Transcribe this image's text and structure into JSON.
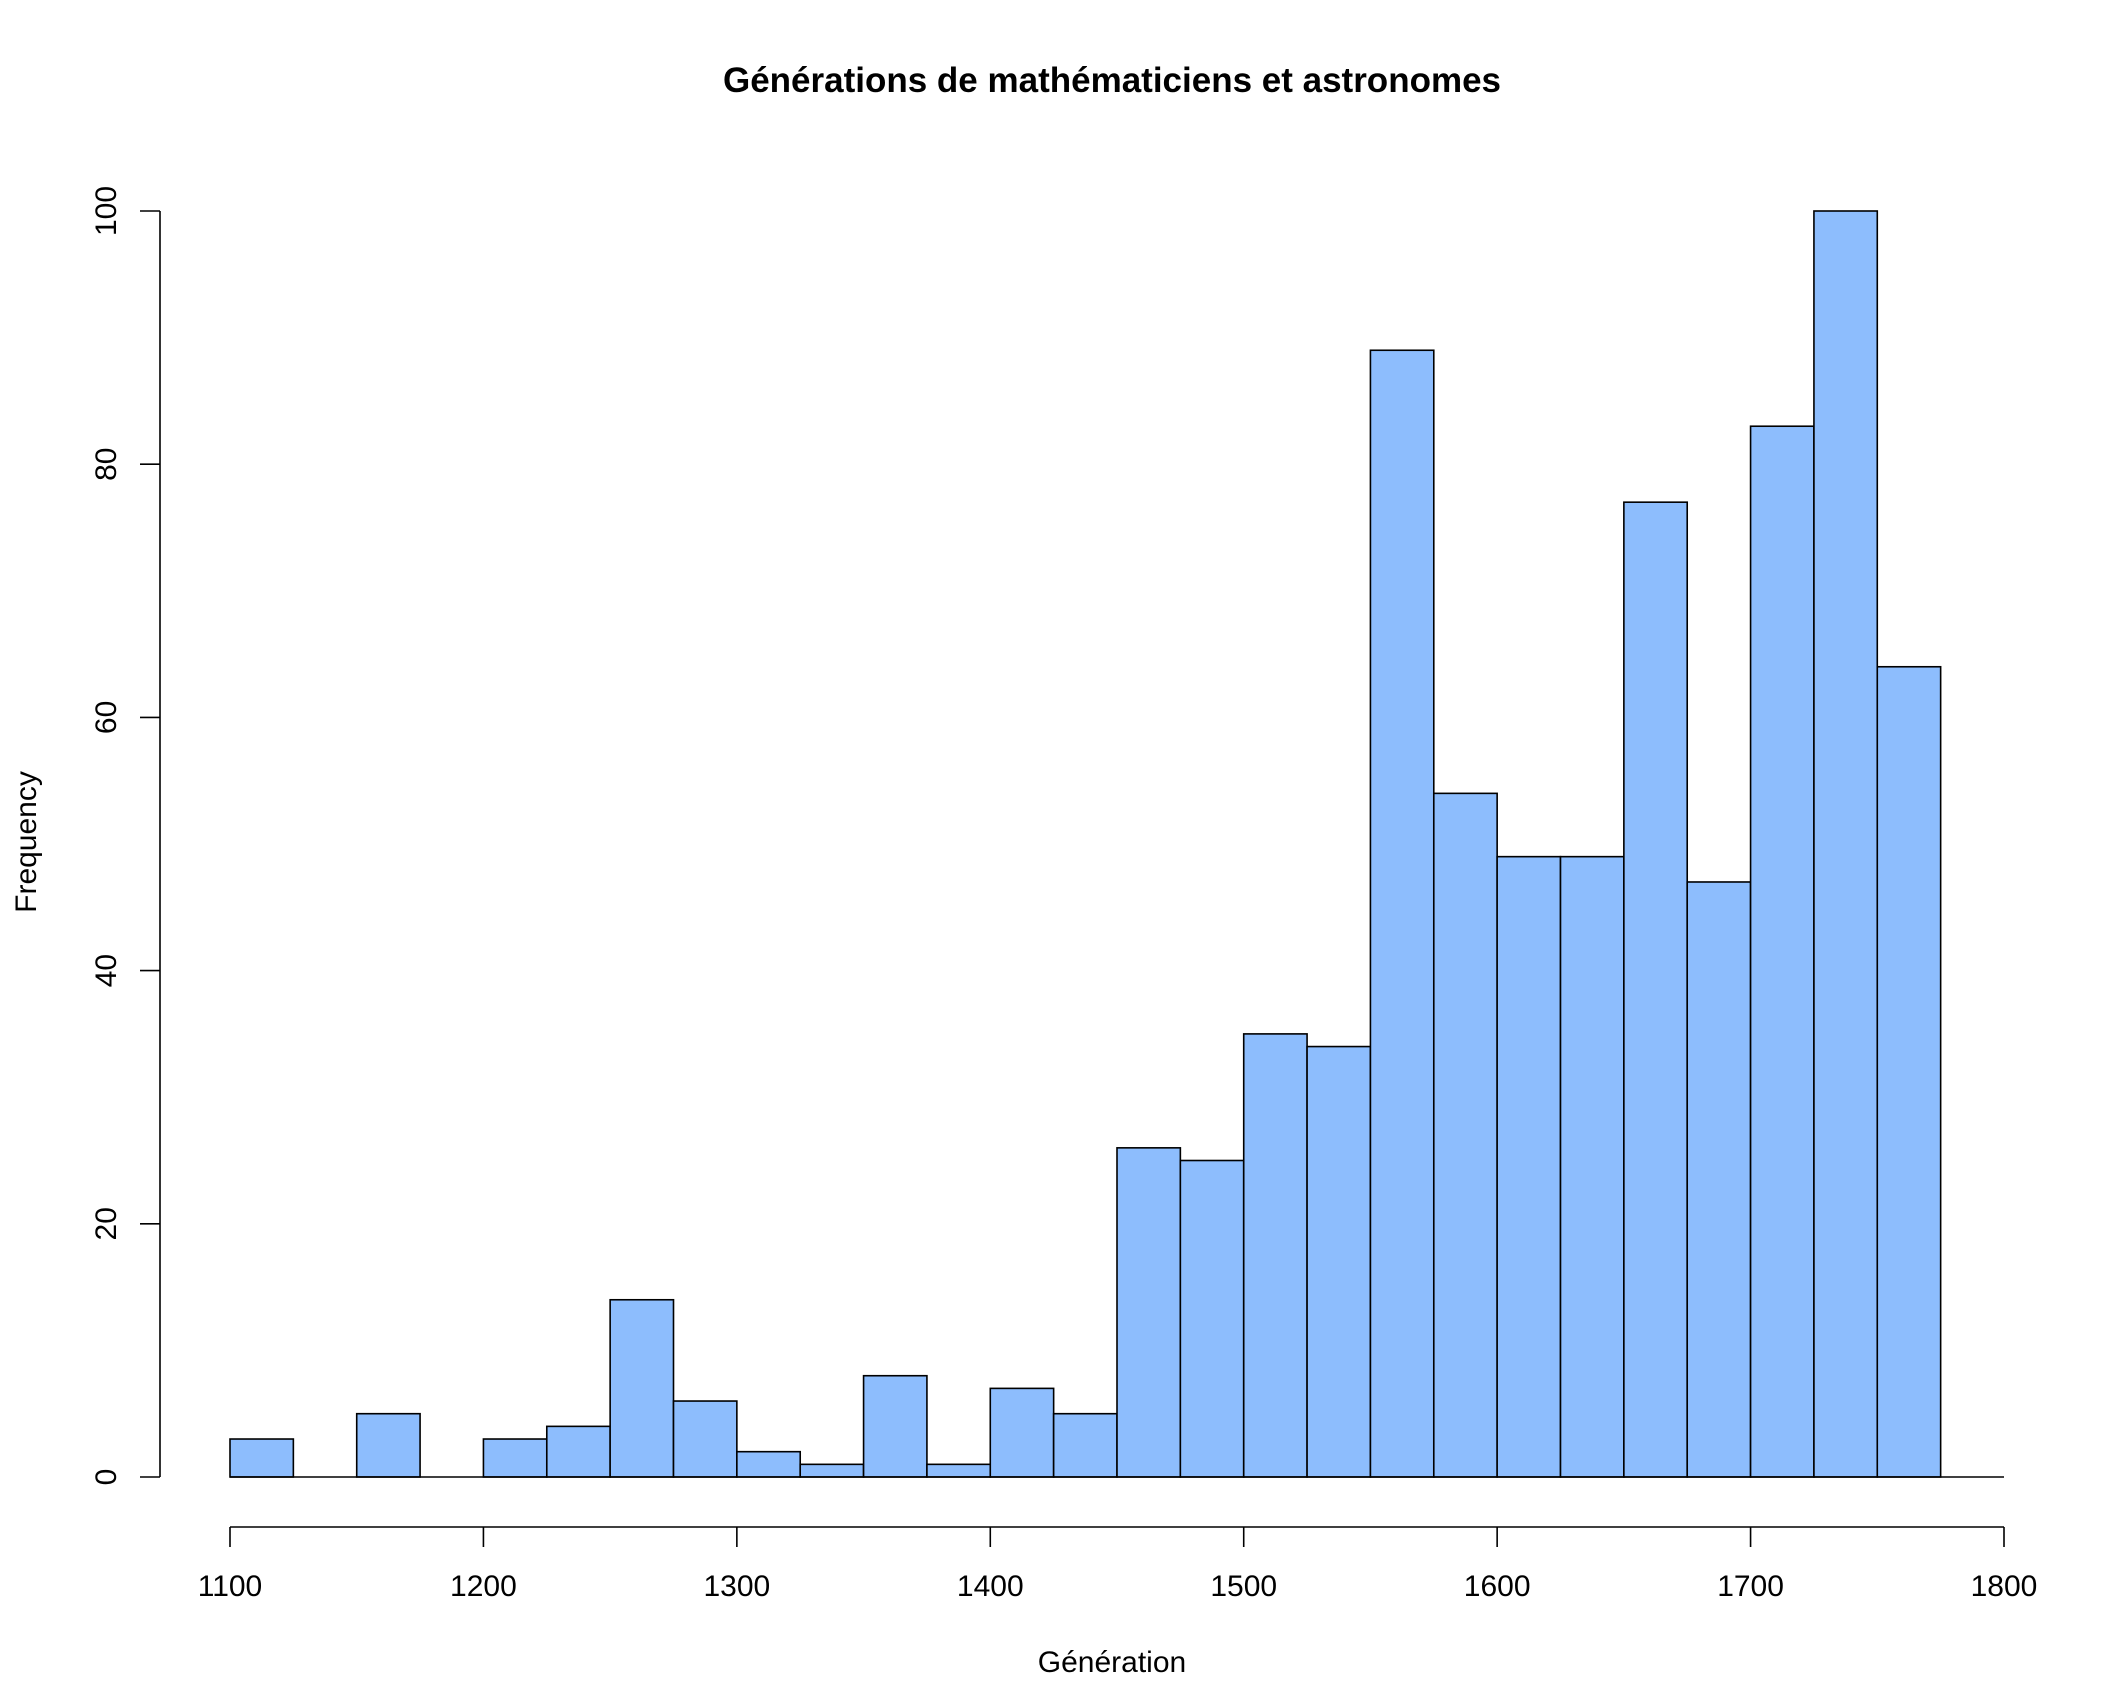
{
  "chart_data": {
    "type": "bar",
    "title": "Générations de mathématiciens et astronomes",
    "xlabel": "Génération",
    "ylabel": "Frequency",
    "bin_width": 25,
    "bins": [
      {
        "start": 1100,
        "end": 1125,
        "count": 3
      },
      {
        "start": 1125,
        "end": 1150,
        "count": 0
      },
      {
        "start": 1150,
        "end": 1175,
        "count": 5
      },
      {
        "start": 1175,
        "end": 1200,
        "count": 0
      },
      {
        "start": 1200,
        "end": 1225,
        "count": 3
      },
      {
        "start": 1225,
        "end": 1250,
        "count": 4
      },
      {
        "start": 1250,
        "end": 1275,
        "count": 14
      },
      {
        "start": 1275,
        "end": 1300,
        "count": 6
      },
      {
        "start": 1300,
        "end": 1325,
        "count": 2
      },
      {
        "start": 1325,
        "end": 1350,
        "count": 1
      },
      {
        "start": 1350,
        "end": 1375,
        "count": 8
      },
      {
        "start": 1375,
        "end": 1400,
        "count": 1
      },
      {
        "start": 1400,
        "end": 1425,
        "count": 7
      },
      {
        "start": 1425,
        "end": 1450,
        "count": 5
      },
      {
        "start": 1450,
        "end": 1475,
        "count": 26
      },
      {
        "start": 1475,
        "end": 1500,
        "count": 25
      },
      {
        "start": 1500,
        "end": 1525,
        "count": 35
      },
      {
        "start": 1525,
        "end": 1550,
        "count": 34
      },
      {
        "start": 1550,
        "end": 1575,
        "count": 89
      },
      {
        "start": 1575,
        "end": 1600,
        "count": 54
      },
      {
        "start": 1600,
        "end": 1625,
        "count": 49
      },
      {
        "start": 1625,
        "end": 1650,
        "count": 49
      },
      {
        "start": 1650,
        "end": 1675,
        "count": 77
      },
      {
        "start": 1675,
        "end": 1700,
        "count": 47
      },
      {
        "start": 1700,
        "end": 1725,
        "count": 83
      },
      {
        "start": 1725,
        "end": 1750,
        "count": 100
      },
      {
        "start": 1750,
        "end": 1775,
        "count": 64
      }
    ],
    "xlim": [
      1100,
      1800
    ],
    "ylim": [
      0,
      100
    ],
    "x_ticks": [
      1100,
      1200,
      1300,
      1400,
      1500,
      1600,
      1700,
      1800
    ],
    "y_ticks": [
      0,
      20,
      40,
      60,
      80,
      100
    ],
    "bar_color": "#8dbdfd",
    "bar_edge_color": "#000000",
    "grid": false,
    "legend": "none"
  }
}
